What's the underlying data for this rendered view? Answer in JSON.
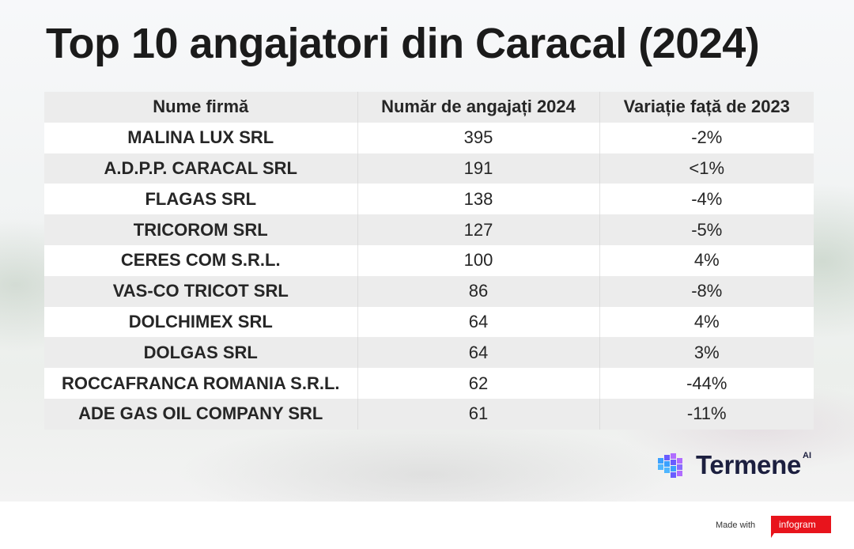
{
  "title": "Top 10 angajatori din Caracal (2024)",
  "table": {
    "headers": [
      "Nume firmă",
      "Număr de angajați 2024",
      "Variație față de 2023"
    ],
    "rows": [
      [
        "MALINA LUX SRL",
        "395",
        "-2%"
      ],
      [
        "A.D.P.P. CARACAL SRL",
        "191",
        "<1%"
      ],
      [
        "FLAGAS SRL",
        "138",
        "-4%"
      ],
      [
        "TRICOROM SRL",
        "127",
        "-5%"
      ],
      [
        "CERES COM S.R.L.",
        "100",
        "4%"
      ],
      [
        "VAS-CO TRICOT SRL",
        "86",
        "-8%"
      ],
      [
        "DOLCHIMEX SRL",
        "64",
        "4%"
      ],
      [
        "DOLGAS SRL",
        "64",
        "3%"
      ],
      [
        "ROCCAFRANCA ROMANIA S.R.L.",
        "62",
        "-44%"
      ],
      [
        "ADE GAS OIL COMPANY SRL",
        "61",
        "-11%"
      ]
    ]
  },
  "brand": {
    "name": "Termene",
    "superscript": "AI",
    "icon": "termene-cube-logo-icon",
    "color": "#1c1f3f",
    "accent_colors": [
      "#6a5cff",
      "#3aa0ff",
      "#b06cff"
    ]
  },
  "footer": {
    "made_with": "Made with",
    "infogram": "infogram",
    "infogram_color": "#e8141c"
  }
}
